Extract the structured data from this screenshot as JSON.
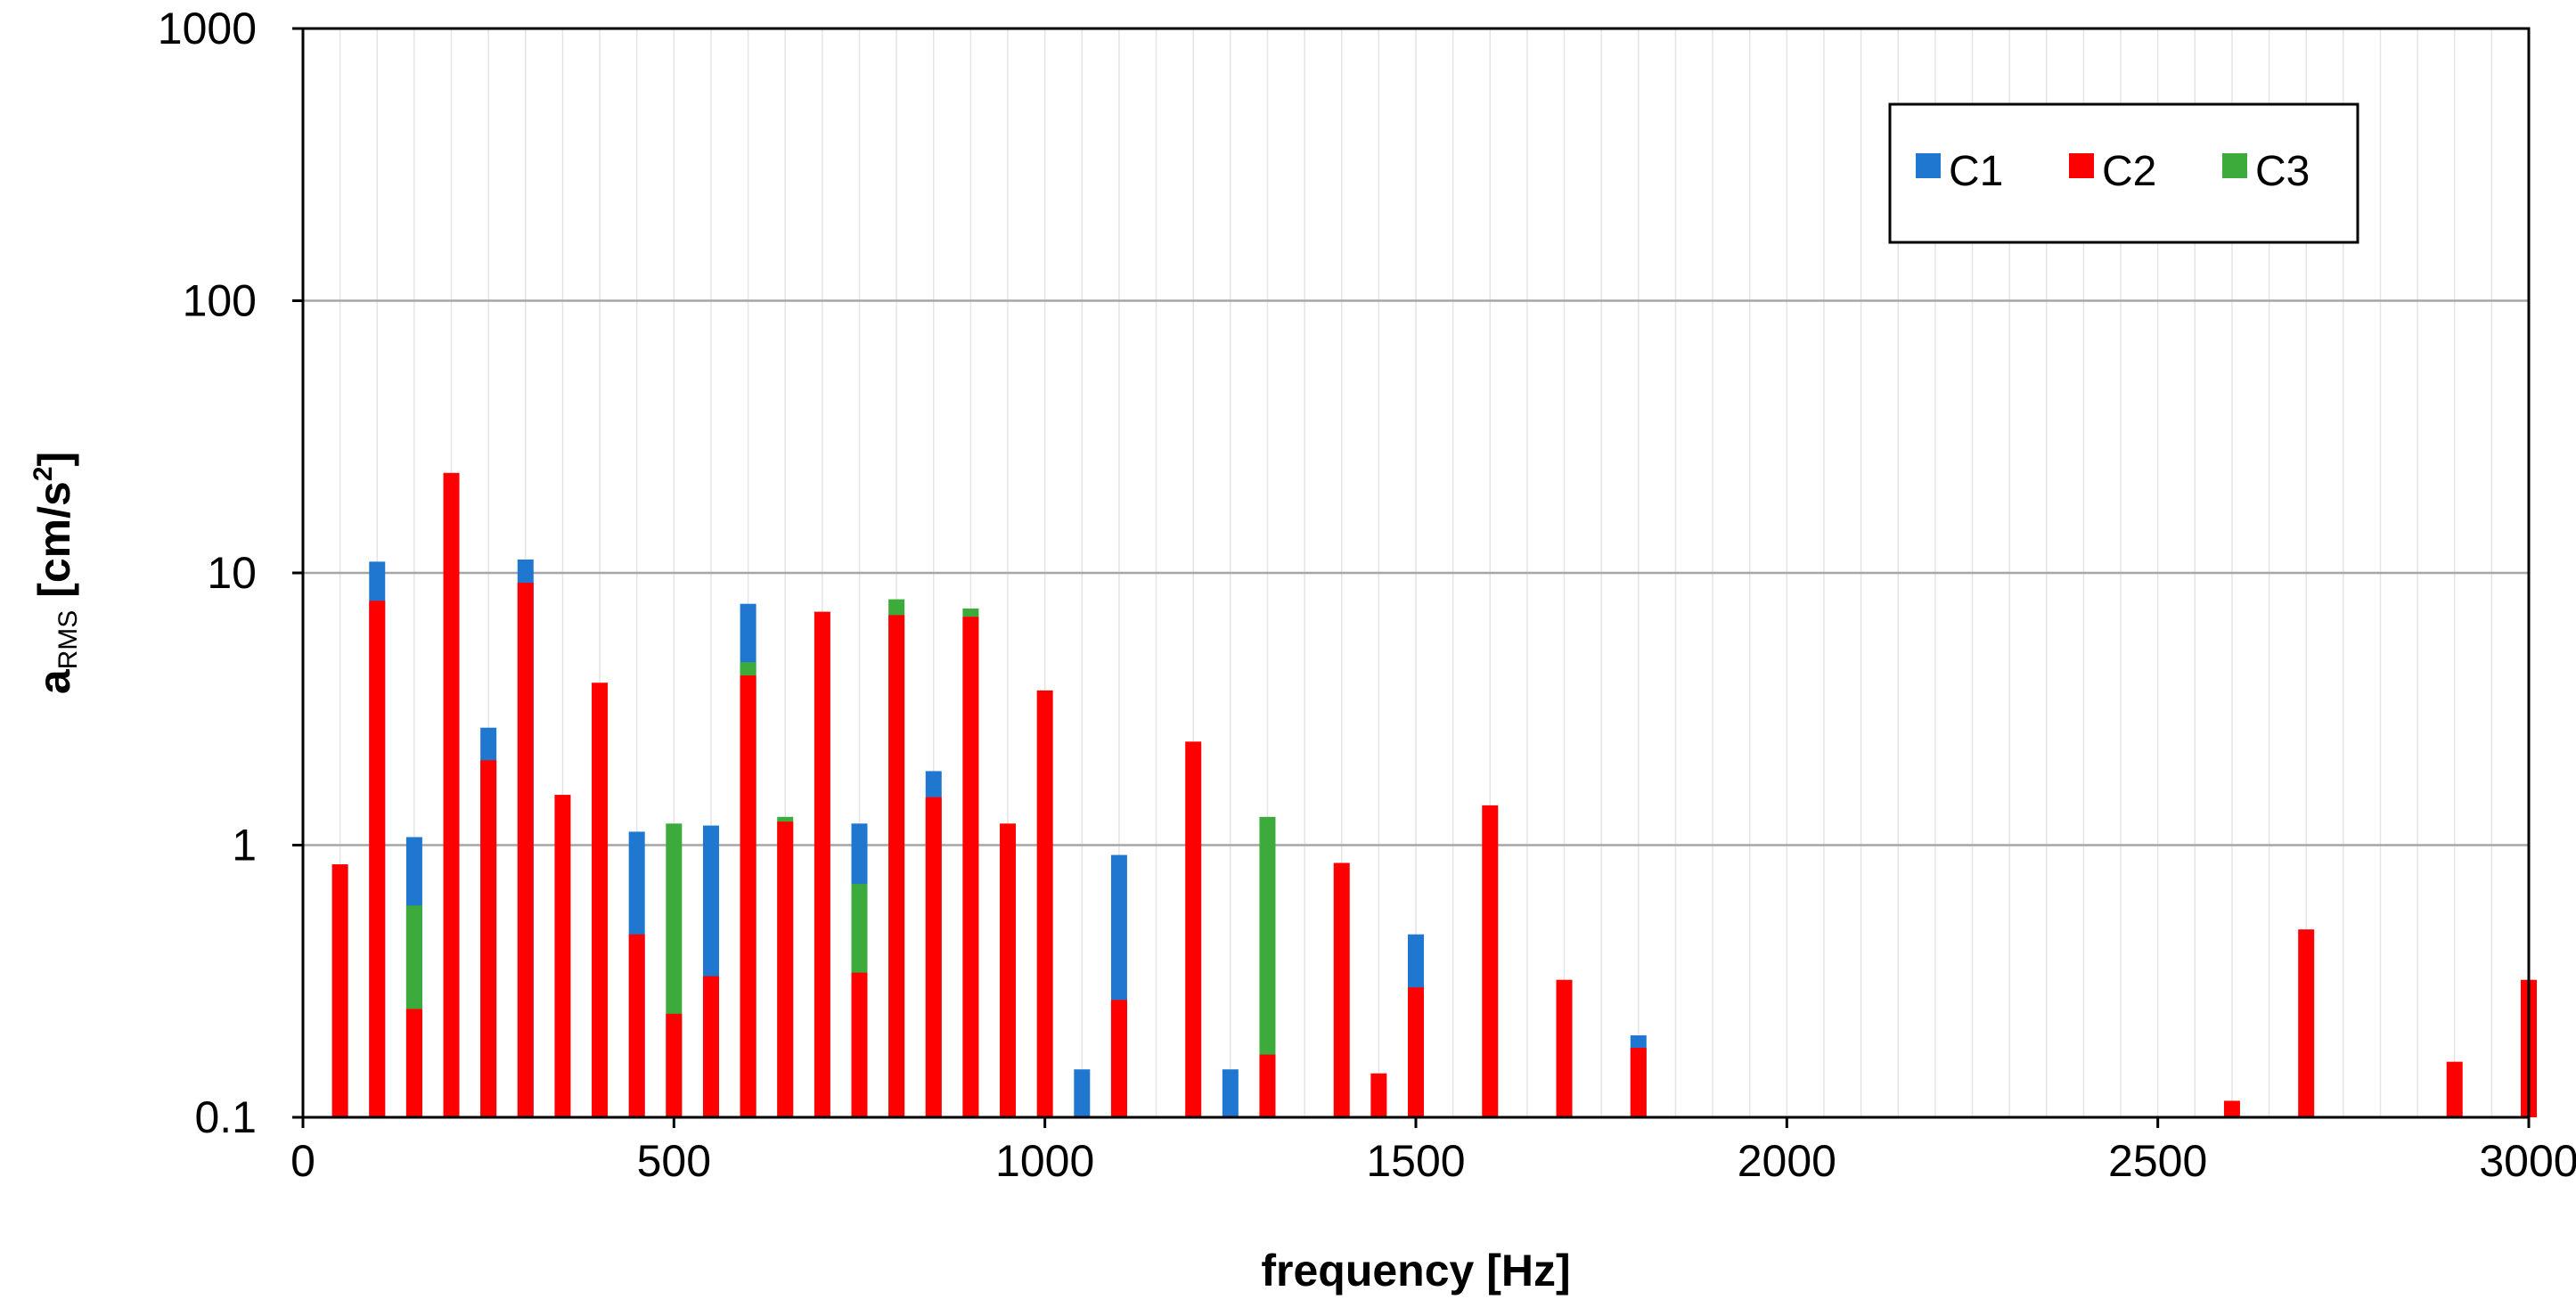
{
  "chart_data": {
    "type": "bar",
    "stacking": "overlapping bars sharing the same x positions; bars drawn C1 behind C3 behind C2",
    "xlabel": "frequency [Hz]",
    "ylabel_main": "a",
    "ylabel_sub": "RMS",
    "ylabel_unit_pre": " [cm/s",
    "ylabel_unit_sup": "2",
    "ylabel_unit_post": "]",
    "xlim": [
      0,
      3000
    ],
    "ylim": [
      0.1,
      1000
    ],
    "yscale": "log",
    "x_ticks": [
      0,
      500,
      1000,
      1500,
      2000,
      2500,
      3000
    ],
    "y_ticks": [
      0.1,
      1,
      10,
      100,
      1000
    ],
    "y_tick_labels": [
      "0.1",
      "1",
      "10",
      "100",
      "1000"
    ],
    "grid": "on",
    "legend_placement": "top-right",
    "colors": {
      "C1": "#1f77d0",
      "C2": "#ff0000",
      "C3": "#3cab3c"
    },
    "series": [
      {
        "name": "C1",
        "points": [
          [
            100,
            11.0
          ],
          [
            150,
            1.07
          ],
          [
            250,
            2.7
          ],
          [
            300,
            11.2
          ],
          [
            450,
            1.12
          ],
          [
            550,
            1.18
          ],
          [
            600,
            7.7
          ],
          [
            750,
            1.2
          ],
          [
            850,
            1.87
          ],
          [
            1050,
            0.15
          ],
          [
            1100,
            0.92
          ],
          [
            1250,
            0.15
          ],
          [
            1500,
            0.47
          ],
          [
            1800,
            0.2
          ]
        ]
      },
      {
        "name": "C2",
        "points": [
          [
            50,
            0.85
          ],
          [
            100,
            7.9
          ],
          [
            150,
            0.25
          ],
          [
            200,
            23.3
          ],
          [
            250,
            2.05
          ],
          [
            300,
            9.2
          ],
          [
            350,
            1.53
          ],
          [
            400,
            3.95
          ],
          [
            450,
            0.47
          ],
          [
            500,
            0.24
          ],
          [
            550,
            0.33
          ],
          [
            600,
            4.2
          ],
          [
            650,
            1.22
          ],
          [
            700,
            7.2
          ],
          [
            750,
            0.34
          ],
          [
            800,
            7.0
          ],
          [
            850,
            1.5
          ],
          [
            900,
            6.9
          ],
          [
            950,
            1.2
          ],
          [
            1000,
            3.7
          ],
          [
            1100,
            0.27
          ],
          [
            1200,
            2.4
          ],
          [
            1300,
            0.17
          ],
          [
            1400,
            0.86
          ],
          [
            1450,
            0.145
          ],
          [
            1500,
            0.3
          ],
          [
            1600,
            1.4
          ],
          [
            1700,
            0.32
          ],
          [
            1800,
            0.18
          ],
          [
            2600,
            0.115
          ],
          [
            2700,
            0.49
          ],
          [
            2900,
            0.16
          ],
          [
            3000,
            0.32
          ]
        ]
      },
      {
        "name": "C3",
        "points": [
          [
            150,
            0.6
          ],
          [
            500,
            1.2
          ],
          [
            600,
            4.7
          ],
          [
            650,
            1.27
          ],
          [
            750,
            0.72
          ],
          [
            800,
            8.0
          ],
          [
            900,
            7.4
          ],
          [
            1300,
            1.27
          ]
        ]
      }
    ]
  }
}
